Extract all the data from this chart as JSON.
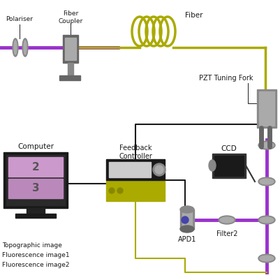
{
  "bg_color": "#ffffff",
  "purple": "#9932CC",
  "fiber_color": "#AAAA00",
  "black": "#1a1a1a",
  "gray1": "#888888",
  "gray2": "#AAAAAA",
  "gray3": "#666666",
  "dark": "#222222",
  "yellow_green": "#AAAA00",
  "blue_dot": "#4444AA",
  "labels": {
    "polariser": "Polariser",
    "fiber_coupler": "Fiber\nCoupler",
    "fiber": "Fiber",
    "pzt": "PZT Tuning Fork",
    "ccd": "CCD",
    "apd1": "APD1",
    "filter2": "Filter2",
    "feedback": "Feedback\nController",
    "computer": "Computer",
    "leg1": "Topographic image",
    "leg2": "Fluorescence image1",
    "leg3": "Fluorescence image2"
  }
}
